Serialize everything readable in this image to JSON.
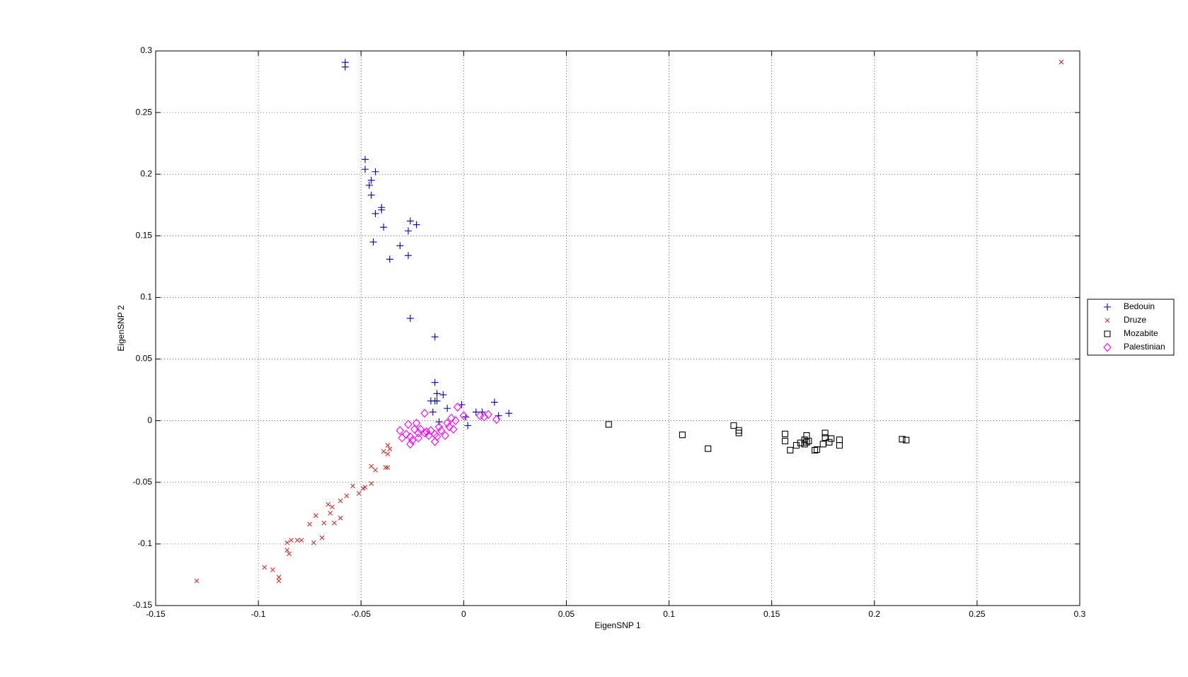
{
  "chart_data": {
    "type": "scatter",
    "x_label": "EigenSNP 1",
    "y_label": "EigenSNP 2",
    "xlim": [
      -0.15,
      0.3
    ],
    "xticks": [
      -0.15,
      -0.1,
      -0.05,
      0,
      0.05,
      0.1,
      0.15,
      0.2,
      0.25,
      0.3
    ],
    "ylim": [
      -0.15,
      0.3
    ],
    "yticks": [
      -0.15,
      -0.1,
      -0.05,
      0,
      0.05,
      0.1,
      0.15,
      0.2,
      0.25,
      0.3
    ],
    "grid": true,
    "legend": "outside-right",
    "series": [
      {
        "name": "Bedouin",
        "color": "#0000b4",
        "marker": "plus",
        "x": [
          -0.0577,
          -0.0577,
          -0.048,
          -0.048,
          -0.043,
          -0.045,
          -0.046,
          -0.045,
          -0.043,
          -0.04,
          -0.04,
          -0.039,
          -0.044,
          -0.036,
          -0.031,
          -0.026,
          -0.023,
          -0.027,
          -0.027,
          -0.026,
          -0.014,
          -0.014,
          -0.013,
          -0.016,
          -0.014,
          -0.013,
          -0.01,
          -0.015,
          -0.008,
          -0.001,
          -0.012,
          0.001,
          0.002,
          0.006,
          0.009,
          0.015,
          0.017,
          0.022
        ],
        "values": [
          0.2907,
          0.287,
          0.212,
          0.204,
          0.202,
          0.195,
          0.191,
          0.183,
          0.168,
          0.173,
          0.171,
          0.157,
          0.145,
          0.131,
          0.142,
          0.162,
          0.159,
          0.154,
          0.134,
          0.083,
          0.068,
          0.031,
          0.022,
          0.016,
          0.016,
          0.016,
          0.021,
          0.007,
          0.01,
          0.013,
          -0.001,
          0.003,
          -0.004,
          0.007,
          0.007,
          0.015,
          0.004,
          0.006
        ]
      },
      {
        "name": "Druze",
        "color": "#d03030",
        "marker": "x",
        "x": [
          -0.13,
          -0.097,
          -0.093,
          -0.09,
          -0.09,
          -0.086,
          -0.086,
          -0.085,
          -0.084,
          -0.081,
          -0.079,
          -0.073,
          -0.075,
          -0.072,
          -0.069,
          -0.068,
          -0.066,
          -0.065,
          -0.064,
          -0.063,
          -0.06,
          -0.06,
          -0.057,
          -0.054,
          -0.051,
          -0.049,
          -0.048,
          -0.045,
          -0.045,
          -0.043,
          -0.038,
          -0.037,
          -0.039,
          -0.037,
          -0.037,
          -0.036,
          0.291
        ],
        "values": [
          -0.13,
          -0.119,
          -0.121,
          -0.127,
          -0.13,
          -0.099,
          -0.105,
          -0.108,
          -0.097,
          -0.097,
          -0.097,
          -0.099,
          -0.084,
          -0.077,
          -0.095,
          -0.083,
          -0.068,
          -0.075,
          -0.07,
          -0.083,
          -0.079,
          -0.065,
          -0.061,
          -0.053,
          -0.059,
          -0.055,
          -0.054,
          -0.051,
          -0.037,
          -0.04,
          -0.038,
          -0.038,
          -0.025,
          -0.027,
          -0.02,
          -0.023,
          0.291
        ]
      },
      {
        "name": "Mozabite",
        "color": "#000000",
        "marker": "square",
        "x": [
          0.0706,
          0.1065,
          0.119,
          0.1315,
          0.134,
          0.134,
          0.1565,
          0.1565,
          0.159,
          0.162,
          0.164,
          0.166,
          0.167,
          0.166,
          0.167,
          0.168,
          0.171,
          0.172,
          0.176,
          0.176,
          0.175,
          0.178,
          0.179,
          0.183,
          0.183,
          0.2135,
          0.2155
        ],
        "values": [
          -0.003,
          -0.0115,
          -0.0227,
          -0.004,
          -0.0078,
          -0.01,
          -0.0108,
          -0.0165,
          -0.0239,
          -0.02,
          -0.018,
          -0.0155,
          -0.012,
          -0.019,
          -0.0175,
          -0.0165,
          -0.024,
          -0.0235,
          -0.01,
          -0.0137,
          -0.019,
          -0.0175,
          -0.0145,
          -0.02,
          -0.0155,
          -0.015,
          -0.0157
        ]
      },
      {
        "name": "Palestinian",
        "color": "#ff00ff",
        "marker": "diamond",
        "x": [
          -0.031,
          -0.03,
          -0.028,
          -0.027,
          -0.026,
          -0.026,
          -0.025,
          -0.024,
          -0.023,
          -0.022,
          -0.022,
          -0.021,
          -0.019,
          -0.019,
          -0.018,
          -0.017,
          -0.016,
          -0.014,
          -0.014,
          -0.013,
          -0.012,
          -0.011,
          -0.009,
          -0.008,
          -0.007,
          -0.006,
          -0.005,
          -0.004,
          -0.003,
          0.0,
          0.008,
          0.01,
          0.012,
          0.016
        ],
        "values": [
          -0.008,
          -0.014,
          -0.011,
          -0.003,
          -0.013,
          -0.019,
          -0.016,
          -0.007,
          -0.002,
          -0.01,
          -0.014,
          -0.007,
          -0.01,
          0.006,
          -0.009,
          -0.012,
          -0.008,
          -0.011,
          -0.017,
          -0.013,
          -0.005,
          -0.008,
          -0.012,
          -0.002,
          -0.005,
          0.002,
          -0.007,
          0.0,
          0.011,
          0.004,
          0.004,
          0.003,
          0.005,
          0.001
        ]
      }
    ]
  }
}
